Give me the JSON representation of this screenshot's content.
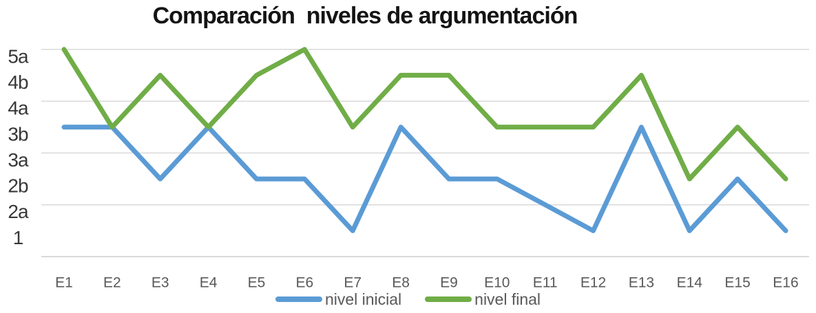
{
  "title": "Comparación  niveles de argumentación",
  "colors": {
    "gridline": "#d9d9d9",
    "axis_line": "#d9d9d9",
    "title_text": "#141414",
    "x_label_text": "#595959",
    "y_label_text": "#383838",
    "series_initial": "#5b9bd5",
    "series_final": "#70ad47"
  },
  "chart_data": {
    "type": "line",
    "title": "Comparación  niveles de argumentación",
    "xlabel": "",
    "ylabel": "",
    "categories": [
      "E1",
      "E2",
      "E3",
      "E4",
      "E5",
      "E6",
      "E7",
      "E8",
      "E9",
      "E10",
      "E11",
      "E12",
      "E13",
      "E14",
      "E15",
      "E16"
    ],
    "y_tick_labels": [
      "1",
      "2a",
      "2b",
      "3a",
      "3b",
      "4a",
      "4b",
      "5a"
    ],
    "y_tick_values": [
      1,
      2,
      3,
      4,
      5,
      6,
      7,
      8
    ],
    "ylim": [
      0,
      8
    ],
    "gridline_step": 2,
    "grid": "horizontal",
    "legend_position": "bottom",
    "series": [
      {
        "name": "nivel inicial",
        "color": "#5b9bd5",
        "values": [
          5,
          5,
          3,
          5,
          3,
          3,
          1,
          5,
          3,
          3,
          2,
          1,
          5,
          1,
          3,
          1
        ],
        "levels": [
          "3b",
          "3b",
          "2b",
          "3b",
          "2b",
          "2b",
          "1",
          "3b",
          "2b",
          "2b",
          "2a",
          "1",
          "3b",
          "1",
          "2b",
          "1"
        ]
      },
      {
        "name": "nivel final",
        "color": "#70ad47",
        "values": [
          8,
          5,
          7,
          5,
          7,
          8,
          5,
          7,
          7,
          5,
          5,
          5,
          7,
          3,
          5,
          3
        ],
        "levels": [
          "5a",
          "3b",
          "4b",
          "3b",
          "4b",
          "5a",
          "3b",
          "4b",
          "4b",
          "3b",
          "3b",
          "3b",
          "4b",
          "2b",
          "3b",
          "2b"
        ]
      }
    ]
  }
}
